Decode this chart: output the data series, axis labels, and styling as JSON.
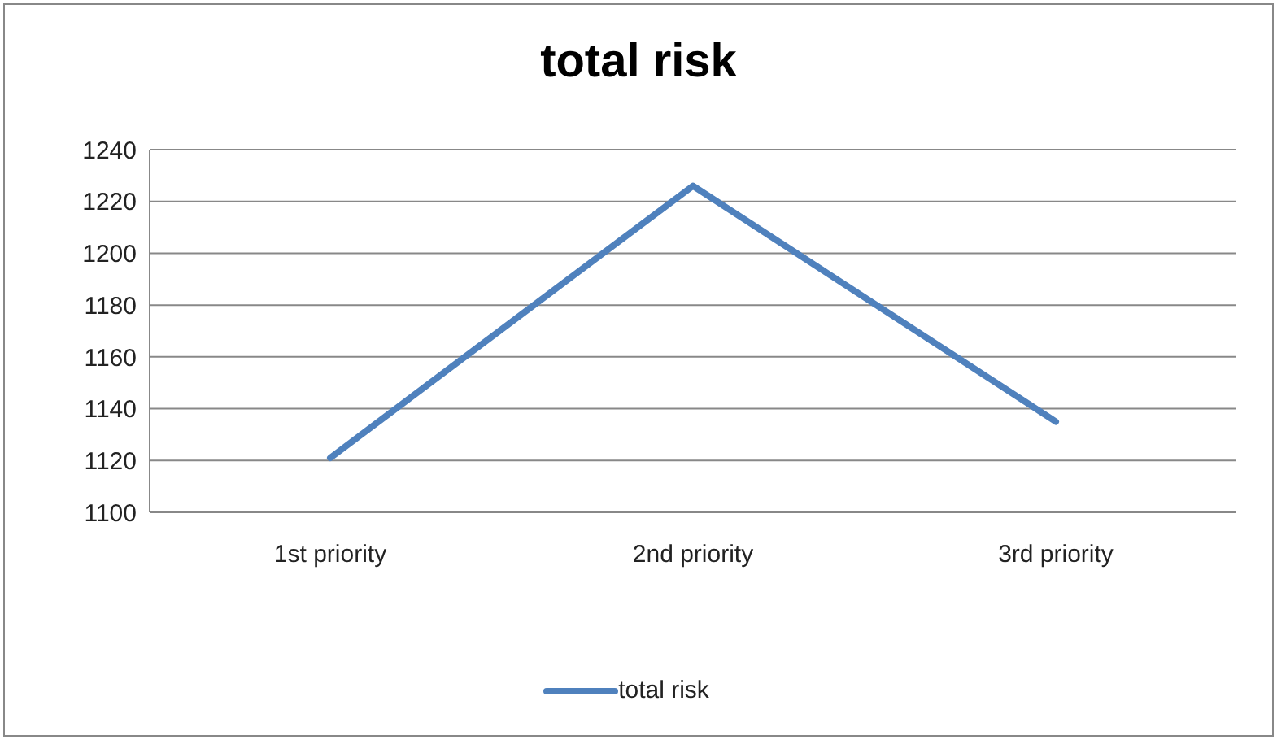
{
  "chart_data": {
    "type": "line",
    "title": "total risk",
    "categories": [
      "1st priority",
      "2nd priority",
      "3rd priority"
    ],
    "series": [
      {
        "name": "total risk",
        "color": "#4f81bd",
        "values": [
          1121,
          1226,
          1135
        ]
      }
    ],
    "ylim": [
      1100,
      1240
    ],
    "yticks": [
      1100,
      1120,
      1140,
      1160,
      1180,
      1200,
      1220,
      1240
    ],
    "grid": "y",
    "legend": "bottom",
    "marker": "none",
    "line_style": "solid"
  }
}
